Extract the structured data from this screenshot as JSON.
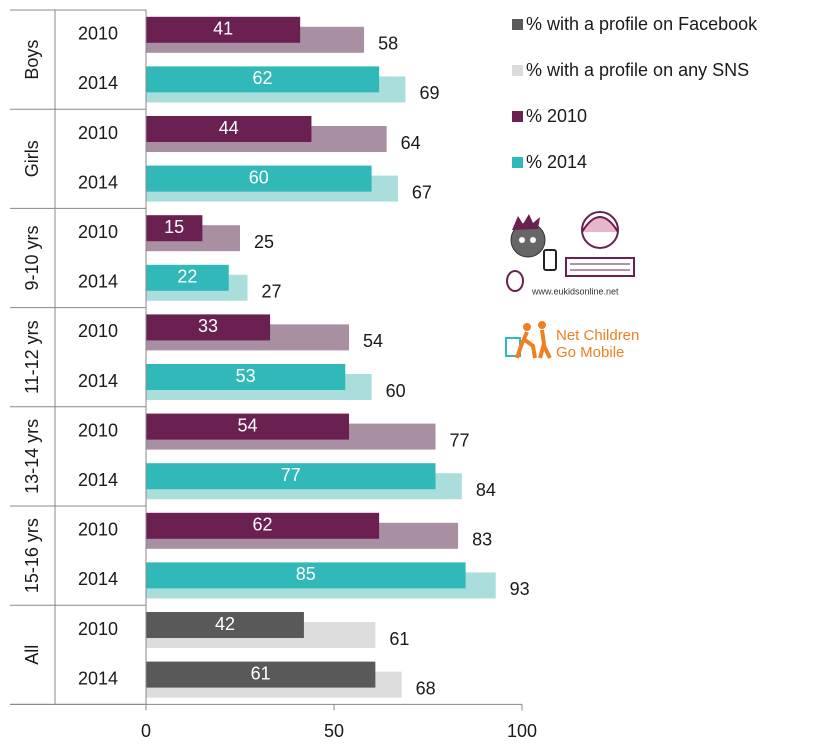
{
  "chart_data": {
    "type": "bar",
    "groups": [
      "Boys",
      "Girls",
      "9-10 yrs",
      "11-12 yrs",
      "13-14 yrs",
      "15-16 yrs",
      "All"
    ],
    "categories": [
      "2010",
      "2014",
      "2010",
      "2014",
      "2010",
      "2014",
      "2010",
      "2014",
      "2010",
      "2014",
      "2010",
      "2014",
      "2010",
      "2014"
    ],
    "series": [
      {
        "name": "% with a profile on Facebook",
        "color": "#595959",
        "values": [
          41,
          62,
          44,
          60,
          15,
          22,
          33,
          53,
          54,
          77,
          62,
          85,
          42,
          61
        ]
      },
      {
        "name": "% with a profile on any SNS",
        "color": "#dcdcdc",
        "values": [
          58,
          69,
          64,
          67,
          25,
          27,
          54,
          60,
          77,
          84,
          83,
          93,
          61,
          68
        ]
      }
    ],
    "year_series": [
      {
        "name": "% 2010",
        "color": "#6a2051",
        "light_color": "#a98fa2"
      },
      {
        "name": "% 2014",
        "color": "#31b8b8",
        "light_color": "#a9dedd"
      }
    ],
    "xlim": [
      0,
      100
    ],
    "xticks": [
      0,
      50,
      100
    ],
    "logos": [
      "www.eukidsonline.net",
      "Net Children",
      "Go Mobile"
    ]
  }
}
